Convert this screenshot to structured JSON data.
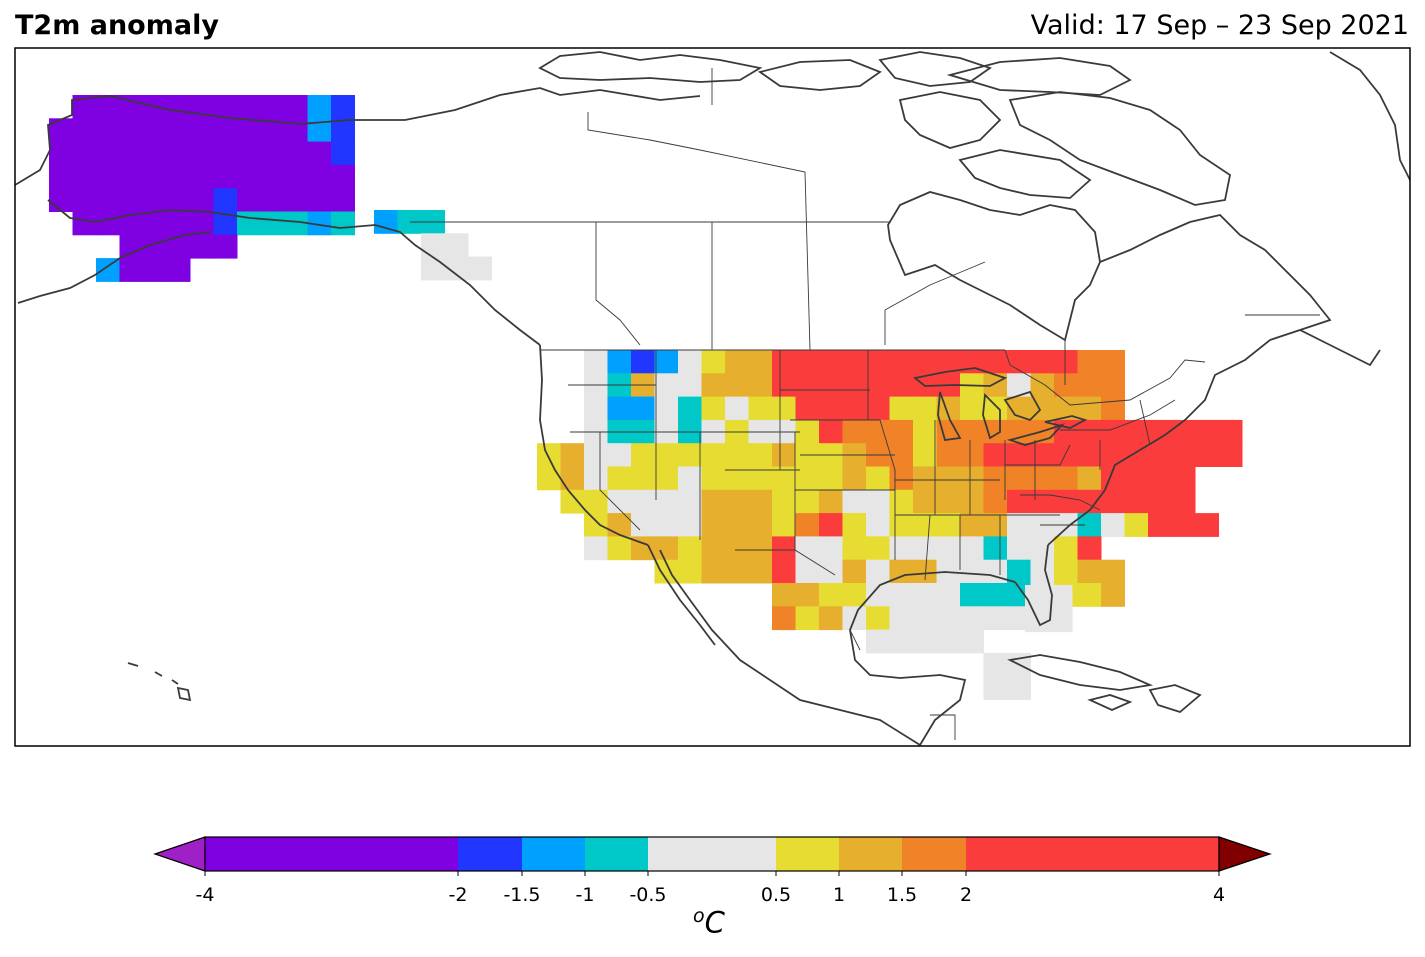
{
  "title": "T2m anomaly",
  "valid": "Valid: 17 Sep – 23 Sep 2021",
  "colorbar": {
    "ticks": [
      "-4",
      "-2",
      "-1.5",
      "-1",
      "-0.5",
      "0.5",
      "1",
      "1.5",
      "2",
      "4"
    ],
    "tick_values": [
      -4,
      -2,
      -1.5,
      -1,
      -0.5,
      0.5,
      1,
      1.5,
      2,
      4
    ],
    "unit_sup": "o",
    "unit": "C",
    "under_color": "#a020c8",
    "over_color": "#800000",
    "bins": [
      {
        "from": -4,
        "to": -2,
        "color": "#7f00e0"
      },
      {
        "from": -2,
        "to": -1.5,
        "color": "#2136ff"
      },
      {
        "from": -1.5,
        "to": -1,
        "color": "#00a0ff"
      },
      {
        "from": -1,
        "to": -0.5,
        "color": "#00c8c8"
      },
      {
        "from": -0.5,
        "to": 0.5,
        "color": "#e6e6e6"
      },
      {
        "from": 0.5,
        "to": 1,
        "color": "#e6dc32"
      },
      {
        "from": 1,
        "to": 1.5,
        "color": "#e6af2d"
      },
      {
        "from": 1.5,
        "to": 2,
        "color": "#f08228"
      },
      {
        "from": 2,
        "to": 4,
        "color": "#fa3c3c"
      }
    ]
  },
  "regions": [
    {
      "name": "Alaska",
      "category": "-4 to -2"
    },
    {
      "name": "Pacific Northwest interior",
      "category": "-1.5 to -0.5"
    },
    {
      "name": "Northern Plains",
      "category": "2 to 4"
    },
    {
      "name": "Northeast",
      "category": "2 to 4"
    },
    {
      "name": "Southwest",
      "category": "1 to 1.5"
    },
    {
      "name": "Gulf Coast",
      "category": "-1 to -0.5"
    },
    {
      "name": "Florida",
      "category": "-0.5 to 0.5"
    }
  ]
}
